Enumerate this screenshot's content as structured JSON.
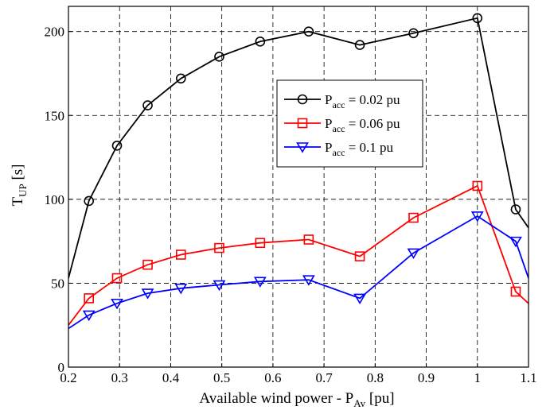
{
  "chart_data": {
    "type": "line",
    "xlabel": "Available wind power - P",
    "xlabel_sub": "Av",
    "xlabel_unit": " [pu]",
    "ylabel": "T",
    "ylabel_sub": "UP",
    "ylabel_unit": " [s]",
    "xlim": [
      0.2,
      1.1
    ],
    "ylim": [
      0,
      215
    ],
    "xticks": [
      0.2,
      0.3,
      0.4,
      0.5,
      0.6,
      0.7,
      0.8,
      0.9,
      1.0,
      1.1
    ],
    "xtick_labels": [
      "0.2",
      "0.3",
      "0.4",
      "0.5",
      "0.6",
      "0.7",
      "0.8",
      "0.9",
      "1",
      "1.1"
    ],
    "yticks": [
      0,
      50,
      100,
      150,
      200
    ],
    "ytick_labels": [
      "0",
      "50",
      "100",
      "150",
      "200"
    ],
    "grid": true,
    "legend_position": "upper-center",
    "series": [
      {
        "name": "P",
        "name_sub": "acc",
        "name_rest": " = 0.02 pu",
        "color": "#000000",
        "marker": "circle",
        "x": [
          0.2,
          0.24,
          0.295,
          0.355,
          0.42,
          0.495,
          0.575,
          0.67,
          0.77,
          0.875,
          1.0,
          1.075,
          1.1
        ],
        "y": [
          53,
          99,
          132,
          156,
          172,
          185,
          194,
          200,
          192,
          199,
          208,
          94,
          83
        ],
        "marker_indices": [
          1,
          2,
          3,
          4,
          5,
          6,
          7,
          8,
          9,
          10,
          11
        ]
      },
      {
        "name": "P",
        "name_sub": "acc",
        "name_rest": " = 0.06 pu",
        "color": "#ff0000",
        "marker": "square",
        "x": [
          0.2,
          0.24,
          0.295,
          0.355,
          0.42,
          0.495,
          0.575,
          0.67,
          0.77,
          0.875,
          1.0,
          1.075,
          1.1
        ],
        "y": [
          25,
          41,
          53,
          61,
          67,
          71,
          74,
          76,
          66,
          89,
          108,
          45,
          38
        ],
        "marker_indices": [
          1,
          2,
          3,
          4,
          5,
          6,
          7,
          8,
          9,
          10,
          11
        ]
      },
      {
        "name": "P",
        "name_sub": "acc",
        "name_rest": " = 0.1 pu",
        "color": "#0000ff",
        "marker": "triangle-down",
        "x": [
          0.2,
          0.24,
          0.295,
          0.355,
          0.42,
          0.495,
          0.575,
          0.67,
          0.77,
          0.875,
          1.0,
          1.075,
          1.1
        ],
        "y": [
          23,
          31,
          38,
          44,
          47,
          49,
          51,
          52,
          41,
          68,
          90,
          75,
          53
        ],
        "marker_indices": [
          1,
          2,
          3,
          4,
          5,
          6,
          7,
          8,
          9,
          10,
          11
        ]
      }
    ]
  }
}
